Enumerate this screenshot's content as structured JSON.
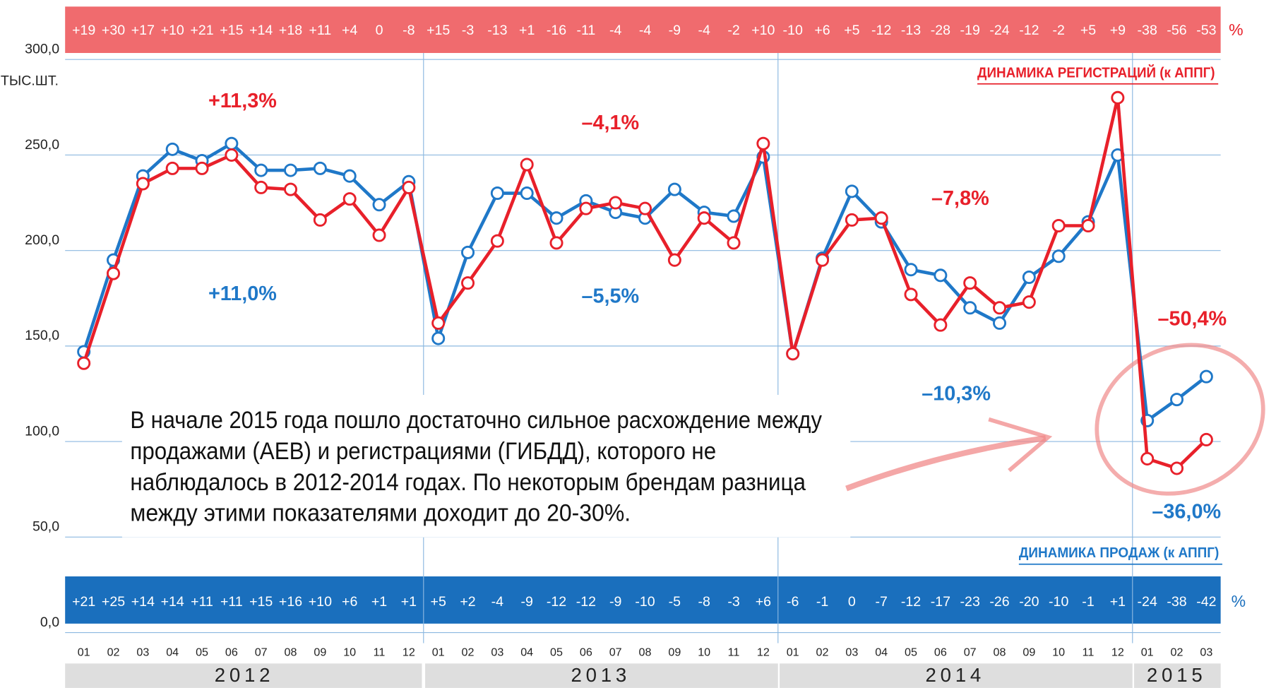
{
  "chart_data": {
    "type": "line",
    "unit_label": "ТЫС.ШТ.",
    "percent_sign": "%",
    "ylim": [
      0,
      300
    ],
    "yticks": [
      {
        "value": 0,
        "label": "0,0"
      },
      {
        "value": 50,
        "label": "50,0"
      },
      {
        "value": 100,
        "label": "100,0"
      },
      {
        "value": 150,
        "label": "150,0"
      },
      {
        "value": 200,
        "label": "200,0"
      },
      {
        "value": 250,
        "label": "250,0"
      },
      {
        "value": 300,
        "label": "300,0"
      }
    ],
    "grid": true,
    "categories": [
      "01",
      "02",
      "03",
      "04",
      "05",
      "06",
      "07",
      "08",
      "09",
      "10",
      "11",
      "12",
      "01",
      "02",
      "03",
      "04",
      "05",
      "06",
      "07",
      "08",
      "09",
      "10",
      "11",
      "12",
      "01",
      "02",
      "03",
      "04",
      "05",
      "06",
      "07",
      "08",
      "09",
      "10",
      "11",
      "12",
      "01",
      "02",
      "03"
    ],
    "years": [
      "2012",
      "2013",
      "2014",
      "2015"
    ],
    "series": [
      {
        "name": "ДИНАМИКА ПРОДАЖ (к АППГ)",
        "color": "#1f78c8",
        "values": [
          147,
          195,
          239,
          253,
          247,
          256,
          242,
          242,
          243,
          239,
          224,
          236,
          154,
          199,
          230,
          230,
          217,
          226,
          220,
          217,
          232,
          220,
          218,
          249,
          146,
          196,
          231,
          215,
          190,
          187,
          170,
          162,
          186,
          197,
          215,
          250,
          111,
          122,
          134
        ],
        "dynamics": [
          "+21",
          "+25",
          "+14",
          "+14",
          "+11",
          "+11",
          "+15",
          "+16",
          "+10",
          "+6",
          "+1",
          "+1",
          "+5",
          "+2",
          "-4",
          "-9",
          "-12",
          "-12",
          "-9",
          "-10",
          "-5",
          "-8",
          "-3",
          "+6",
          "-6",
          "-1",
          "0",
          "-7",
          "-12",
          "-17",
          "-23",
          "-26",
          "-20",
          "-10",
          "-1",
          "+1",
          "-24",
          "-38",
          "-42"
        ],
        "year_changes": [
          "+11,0%",
          "–5,5%",
          "–10,3%",
          "–36,0%"
        ]
      },
      {
        "name": "ДИНАМИКА РЕГИСТРАЦИЙ (к АППГ)",
        "color": "#e8202a",
        "values": [
          141,
          188,
          235,
          243,
          243,
          250,
          233,
          232,
          216,
          227,
          208,
          233,
          162,
          183,
          205,
          245,
          204,
          222,
          225,
          222,
          195,
          217,
          204,
          256,
          146,
          195,
          216,
          217,
          177,
          161,
          183,
          170,
          173,
          213,
          213,
          280,
          91,
          86,
          101
        ],
        "dynamics": [
          "+19",
          "+30",
          "+17",
          "+10",
          "+21",
          "+15",
          "+14",
          "+18",
          "+11",
          "+4",
          "0",
          "-8",
          "+15",
          "-3",
          "-13",
          "+1",
          "-16",
          "-11",
          "-4",
          "-4",
          "-9",
          "-4",
          "-2",
          "+10",
          "-10",
          "+6",
          "+5",
          "-12",
          "-13",
          "-28",
          "-19",
          "-24",
          "-12",
          "-2",
          "+5",
          "+9",
          "-38",
          "-56",
          "-53"
        ],
        "year_changes": [
          "+11,3%",
          "–4,1%",
          "–7,8%",
          "–50,4%"
        ]
      }
    ],
    "note": [
      "В начале 2015 года пошло достаточно сильное расхождение между",
      "продажами (АЕВ) и регистрациями (ГИБДД), которого не",
      "наблюдалось в 2012-2014 годах. По некоторым брендам разница",
      "между этими показателями доходит до 20-30%."
    ]
  }
}
